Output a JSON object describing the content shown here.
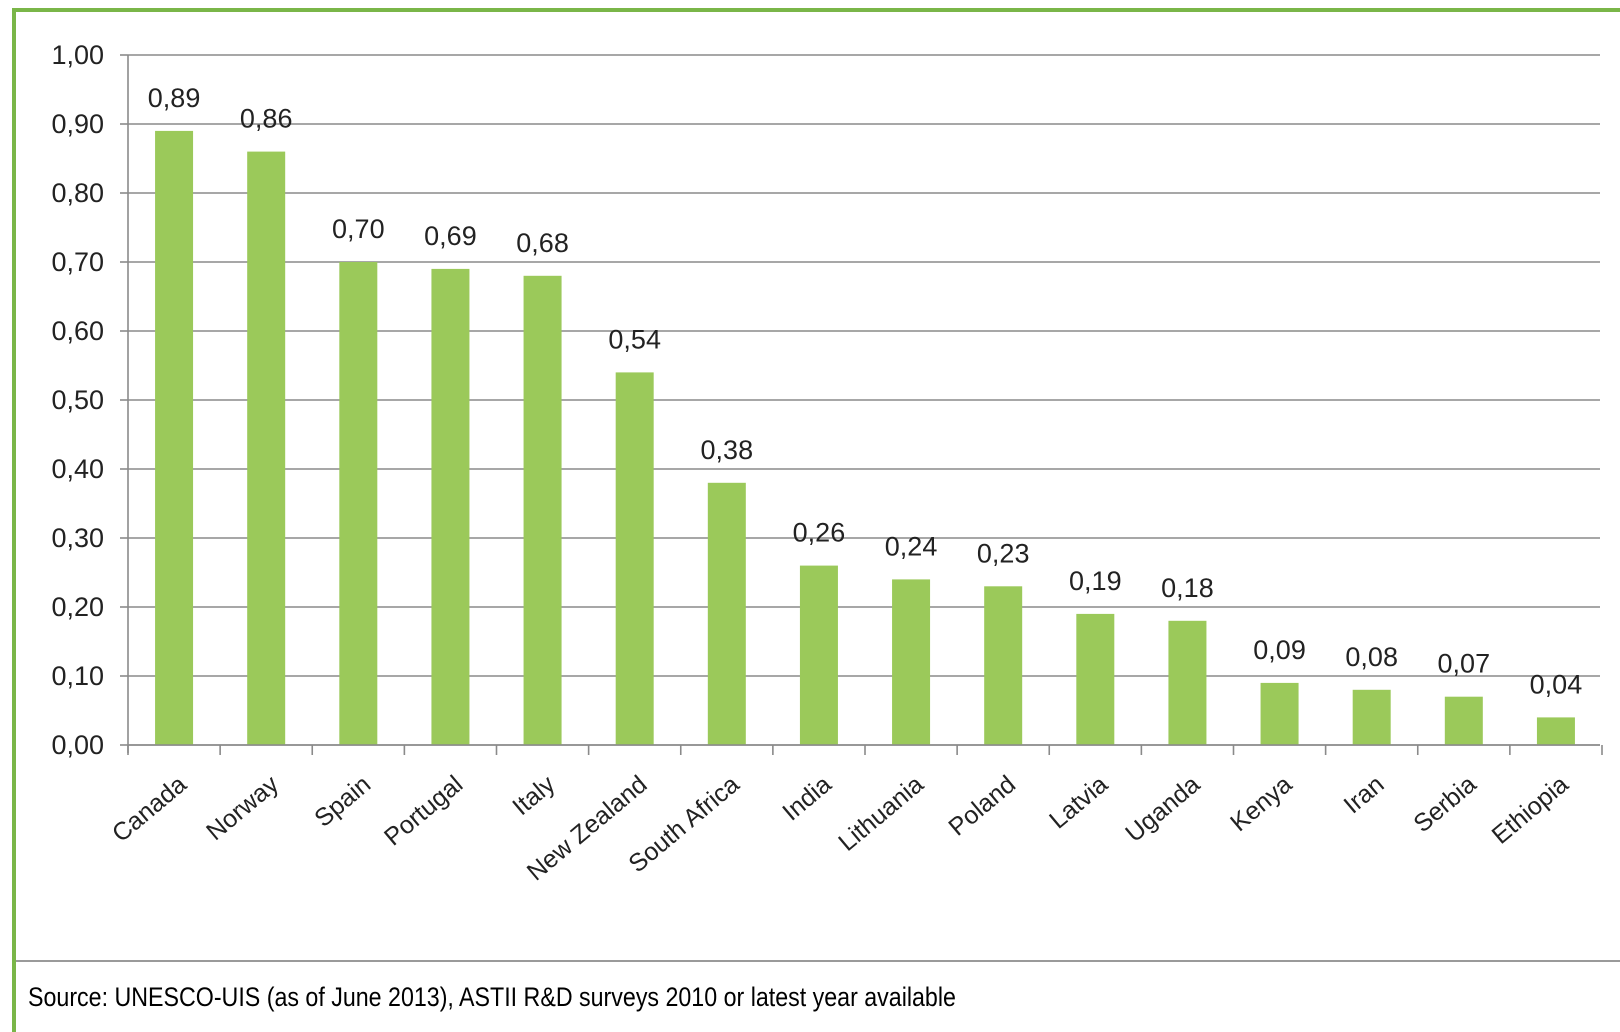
{
  "chart_data": {
    "type": "bar",
    "categories": [
      "Canada",
      "Norway",
      "Spain",
      "Portugal",
      "Italy",
      "New Zealand",
      "South Africa",
      "India",
      "Lithuania",
      "Poland",
      "Latvia",
      "Uganda",
      "Kenya",
      "Iran",
      "Serbia",
      "Ethiopia"
    ],
    "values": [
      0.89,
      0.86,
      0.7,
      0.69,
      0.68,
      0.54,
      0.38,
      0.26,
      0.24,
      0.23,
      0.19,
      0.18,
      0.09,
      0.08,
      0.07,
      0.04
    ],
    "data_labels": [
      "0,89",
      "0,86",
      "0,70",
      "0,69",
      "0,68",
      "0,54",
      "0,38",
      "0,26",
      "0,24",
      "0,23",
      "0,19",
      "0,18",
      "0,09",
      "0,08",
      "0,07",
      "0,04"
    ],
    "yticks": [
      0.0,
      0.1,
      0.2,
      0.3,
      0.4,
      0.5,
      0.6,
      0.7,
      0.8,
      0.9,
      1.0
    ],
    "ytick_labels": [
      "0,00",
      "0,10",
      "0,20",
      "0,30",
      "0,40",
      "0,50",
      "0,60",
      "0,70",
      "0,80",
      "0,90",
      "1,00"
    ],
    "ylim": [
      0,
      1
    ],
    "grid": true,
    "bar_color": "#9bc95a",
    "title": "",
    "xlabel": "",
    "ylabel": ""
  },
  "source_text": "Source: UNESCO-UIS (as of June 2013), ASTII R&D surveys 2010 or latest year available"
}
